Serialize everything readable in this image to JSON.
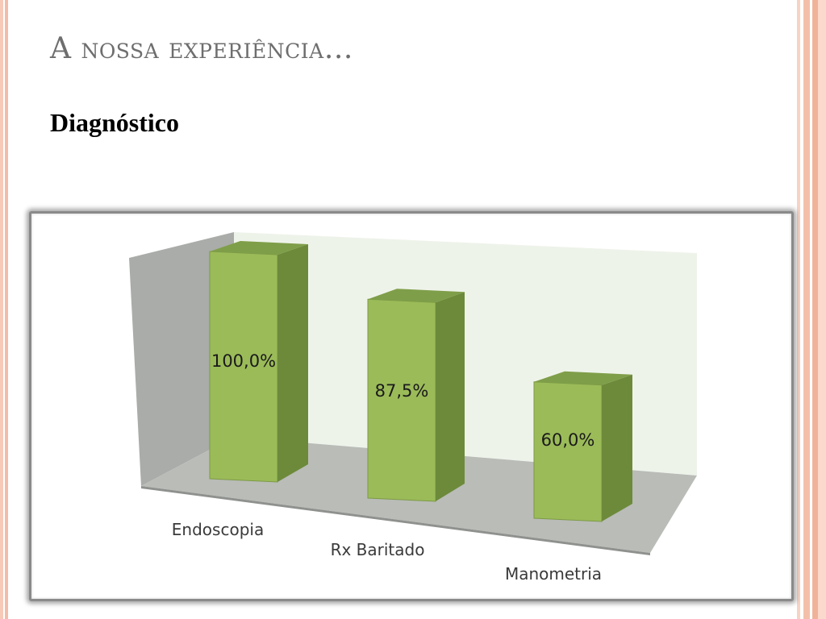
{
  "slide": {
    "title": "A nossa experiência…",
    "subtitle": "Diagnóstico"
  },
  "colors": {
    "title_text": "#6e6e6e",
    "bar_front": "#9bbb59",
    "bar_side": "#6c8a3a",
    "bar_top": "#7f9e49",
    "back_wall": "#eef3ea",
    "side_wall": "#a9aca8",
    "floor": "#b9bcb7",
    "accent_stripes": "#f4bfa9"
  },
  "chart_data": {
    "type": "bar",
    "style": "3d-column",
    "title": "",
    "categories": [
      "Endoscopia",
      "Rx Baritado",
      "Manometria"
    ],
    "values": [
      100.0,
      87.5,
      60.0
    ],
    "data_labels": [
      "100,0%",
      "87,5%",
      "60,0%"
    ],
    "ylim": [
      0,
      100
    ],
    "grid": false,
    "legend": "none"
  }
}
